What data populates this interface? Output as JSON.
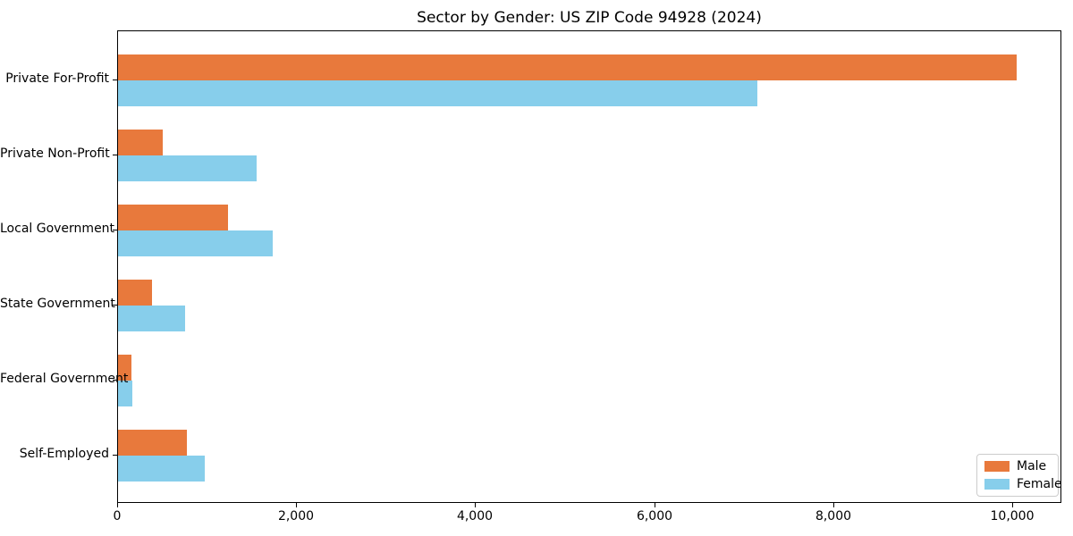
{
  "title": "Sector by Gender: US ZIP Code 94928 (2024)",
  "colors": {
    "male": "#E8793C",
    "female": "#87CEEB",
    "axis": "#000000",
    "legend_border": "#cccccc",
    "background": "#ffffff"
  },
  "legend": {
    "position": "lower right",
    "items": [
      {
        "label": "Male",
        "color_key": "male"
      },
      {
        "label": "Female",
        "color_key": "female"
      }
    ]
  },
  "chart_data": {
    "type": "bar",
    "orientation": "horizontal",
    "title": "Sector by Gender: US ZIP Code 94928 (2024)",
    "xlabel": "",
    "ylabel": "",
    "categories": [
      "Private For-Profit",
      "Private Non-Profit",
      "Local Government",
      "State Government",
      "Federal Government",
      "Self-Employed"
    ],
    "series": [
      {
        "name": "Male",
        "color": "#E8793C",
        "values": [
          10040,
          500,
          1230,
          380,
          150,
          770
        ]
      },
      {
        "name": "Female",
        "color": "#87CEEB",
        "values": [
          7140,
          1550,
          1730,
          750,
          160,
          970
        ]
      }
    ],
    "xlim": [
      0,
      10550
    ],
    "x_ticks": [
      0,
      2000,
      4000,
      6000,
      8000,
      10000
    ],
    "x_tick_labels": [
      "0",
      "2,000",
      "4,000",
      "6,000",
      "8,000",
      "10,000"
    ],
    "grid": false,
    "legend_position": "lower right"
  }
}
